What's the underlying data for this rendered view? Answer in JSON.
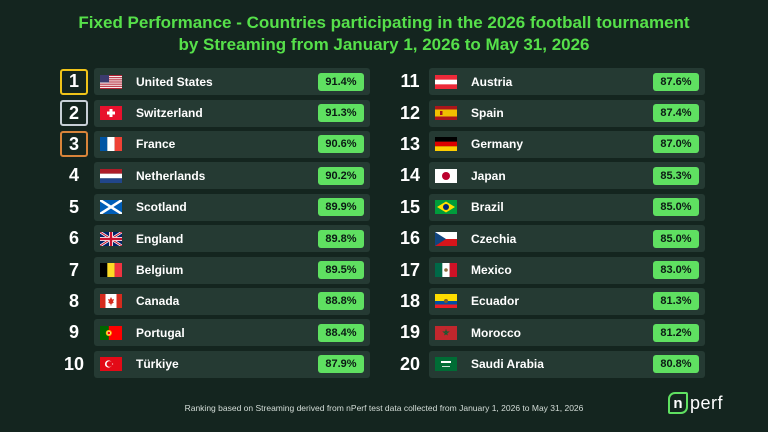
{
  "title_line1": "Fixed Performance - Countries participating in the 2026 football tournament",
  "title_line2": "by Streaming from January 1, 2026 to May 31, 2026",
  "footer": "Ranking based on Streaming derived from nPerf test data collected from January 1, 2026 to May 31, 2026",
  "logo": {
    "mark": "n",
    "text": "perf"
  },
  "colors": {
    "title": "#56e04a",
    "pct_badge": "#5fe061",
    "row_bg": "#253a33",
    "background": "#14251f"
  },
  "left": [
    {
      "rank": "1",
      "country": "United States",
      "pct": "91.4%",
      "flag": "us-flag",
      "medal": "gold"
    },
    {
      "rank": "2",
      "country": "Switzerland",
      "pct": "91.3%",
      "flag": "ch-flag",
      "medal": "silver"
    },
    {
      "rank": "3",
      "country": "France",
      "pct": "90.6%",
      "flag": "fr-flag",
      "medal": "bronze"
    },
    {
      "rank": "4",
      "country": "Netherlands",
      "pct": "90.2%",
      "flag": "nl-flag"
    },
    {
      "rank": "5",
      "country": "Scotland",
      "pct": "89.9%",
      "flag": "sco-flag"
    },
    {
      "rank": "6",
      "country": "England",
      "pct": "89.8%",
      "flag": "uk-flag"
    },
    {
      "rank": "7",
      "country": "Belgium",
      "pct": "89.5%",
      "flag": "be-flag"
    },
    {
      "rank": "8",
      "country": "Canada",
      "pct": "88.8%",
      "flag": "ca-flag"
    },
    {
      "rank": "9",
      "country": "Portugal",
      "pct": "88.4%",
      "flag": "pt-flag"
    },
    {
      "rank": "10",
      "country": "Türkiye",
      "pct": "87.9%",
      "flag": "tr-flag"
    }
  ],
  "right": [
    {
      "rank": "11",
      "country": "Austria",
      "pct": "87.6%",
      "flag": "at-flag"
    },
    {
      "rank": "12",
      "country": "Spain",
      "pct": "87.4%",
      "flag": "es-flag"
    },
    {
      "rank": "13",
      "country": "Germany",
      "pct": "87.0%",
      "flag": "de-flag"
    },
    {
      "rank": "14",
      "country": "Japan",
      "pct": "85.3%",
      "flag": "jp-flag"
    },
    {
      "rank": "15",
      "country": "Brazil",
      "pct": "85.0%",
      "flag": "br-flag"
    },
    {
      "rank": "16",
      "country": "Czechia",
      "pct": "85.0%",
      "flag": "cz-flag"
    },
    {
      "rank": "17",
      "country": "Mexico",
      "pct": "83.0%",
      "flag": "mx-flag"
    },
    {
      "rank": "18",
      "country": "Ecuador",
      "pct": "81.3%",
      "flag": "ec-flag"
    },
    {
      "rank": "19",
      "country": "Morocco",
      "pct": "81.2%",
      "flag": "ma-flag"
    },
    {
      "rank": "20",
      "country": "Saudi Arabia",
      "pct": "80.8%",
      "flag": "sa-flag"
    }
  ]
}
